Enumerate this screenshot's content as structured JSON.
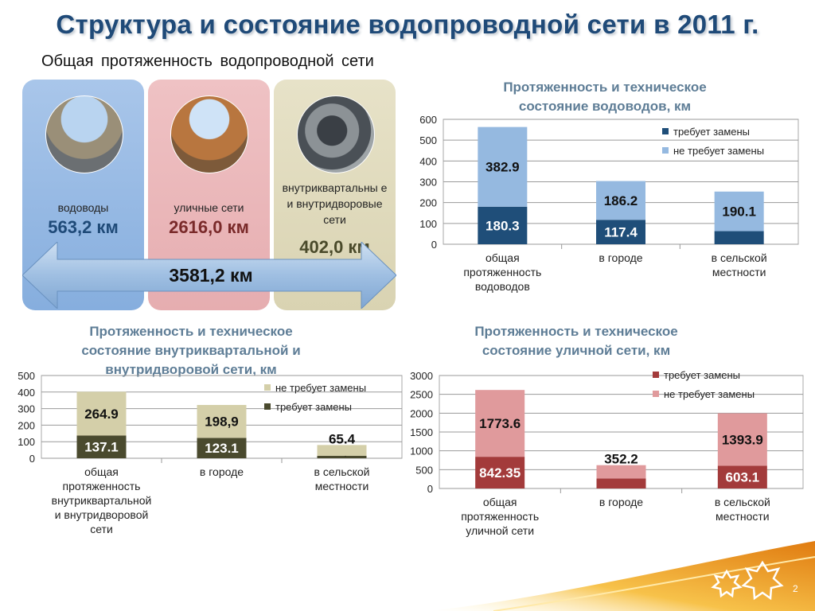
{
  "title": "Структура и состояние водопроводной сети в 2011 г.",
  "subtitle": "Общая протяженность водопроводной сети",
  "panels": [
    {
      "label": "водоводы",
      "value": "563,2 км",
      "value_color": "#1f4a78"
    },
    {
      "label": "уличные сети",
      "value": "2616,0 км",
      "value_color": "#7a2a2a"
    },
    {
      "label": "внутриквартальны е и внутридворовые сети",
      "value": "402,0 км",
      "value_color": "#4a4a2a"
    }
  ],
  "total": "3581,2 км",
  "page_number": "2",
  "chart_data": [
    {
      "type": "bar",
      "stacked": true,
      "title": "Протяженность и техническое состояние водоводов, км",
      "categories": [
        "общая протяженность водоводов",
        "в городе",
        "в сельской местности"
      ],
      "category_lines": [
        [
          "общая",
          "протяженность",
          "водоводов"
        ],
        [
          "в городе"
        ],
        [
          "в сельской",
          "местности"
        ]
      ],
      "series": [
        {
          "name": "требует замены",
          "values": [
            180.3,
            117.4,
            62.9
          ],
          "labels": [
            "180.3",
            "117.4",
            "62.9"
          ],
          "color": "#1f4e79"
        },
        {
          "name": "не требует замены",
          "values": [
            382.9,
            186.2,
            190.1
          ],
          "labels": [
            "382.9",
            "186.2",
            "190.1"
          ],
          "color": "#95b9e0"
        }
      ],
      "ylim": [
        0,
        600
      ],
      "yticks": [
        0,
        100,
        200,
        300,
        400,
        500,
        600
      ],
      "grid": true,
      "legend": "top-right"
    },
    {
      "type": "bar",
      "stacked": true,
      "title": "Протяженность и техническое состояние внутриквартальной и внутридворовой сети, км",
      "categories": [
        "общая протяженность внутриквартальной и внутридворовой сети",
        "в городе",
        "в сельской местности"
      ],
      "category_lines": [
        [
          "общая",
          "протяженность",
          "внутриквартальной",
          "и внутридворовой",
          "сети"
        ],
        [
          "в городе"
        ],
        [
          "в сельской",
          "местности"
        ]
      ],
      "series": [
        {
          "name": "требует замены",
          "values": [
            137.1,
            123.1,
            14.6
          ],
          "labels": [
            "137.1",
            "123.1",
            "14,6"
          ],
          "color": "#4a4a2e"
        },
        {
          "name": "не требует замены",
          "values": [
            264.9,
            198.9,
            65.4
          ],
          "labels": [
            "264.9",
            "198,9",
            "65.4"
          ],
          "color": "#d4cfa9"
        }
      ],
      "ylim": [
        0,
        500
      ],
      "yticks": [
        0,
        100,
        200,
        300,
        400,
        500
      ],
      "grid": true,
      "legend": "top-right"
    },
    {
      "type": "bar",
      "stacked": true,
      "title": "Протяженность и техническое состояние уличной сети, км",
      "categories": [
        "общая протяженность уличной сети",
        "в городе",
        "в сельской местности"
      ],
      "category_lines": [
        [
          "общая",
          "протяженность",
          "уличной сети"
        ],
        [
          "в городе"
        ],
        [
          "в сельской",
          "местности"
        ]
      ],
      "series": [
        {
          "name": "требует замены",
          "values": [
            842.35,
            266.8,
            603.1
          ],
          "labels": [
            "842.35",
            "266.8",
            "603.1"
          ],
          "color": "#a33b3b"
        },
        {
          "name": "не требует замены",
          "values": [
            1773.6,
            352.2,
            1393.9
          ],
          "labels": [
            "1773.6",
            "352.2",
            "1393.9"
          ],
          "color": "#e09a9c"
        }
      ],
      "ylim": [
        0,
        3000
      ],
      "yticks": [
        0,
        500,
        1000,
        1500,
        2000,
        2500,
        3000
      ],
      "grid": true,
      "legend": "top-right"
    }
  ]
}
